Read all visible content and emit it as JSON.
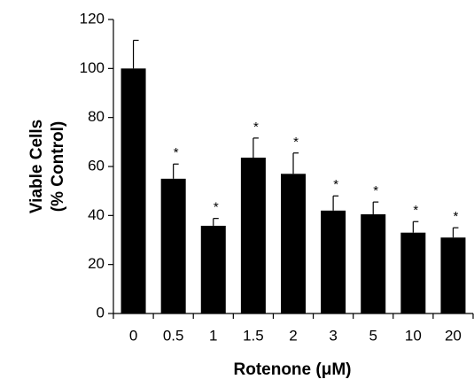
{
  "chart_data": {
    "type": "bar",
    "ylabel": [
      "Viable Cells",
      "(% Control)"
    ],
    "xlabel": "Rotenone (μM)",
    "categories": [
      "0",
      "0.5",
      "1",
      "1.5",
      "2",
      "3",
      "5",
      "10",
      "20"
    ],
    "values": [
      100,
      55,
      35.8,
      63.6,
      57,
      42,
      40.5,
      33,
      31
    ],
    "errors": [
      11.5,
      6,
      3,
      8,
      8.5,
      6,
      5,
      4.5,
      4
    ],
    "significance": [
      null,
      "*",
      "*",
      "*",
      "*",
      "*",
      "*",
      "*",
      "*"
    ],
    "color": "#000000",
    "ylim": [
      0,
      120
    ],
    "yticks": [
      0,
      20,
      40,
      60,
      80,
      100,
      120
    ]
  }
}
